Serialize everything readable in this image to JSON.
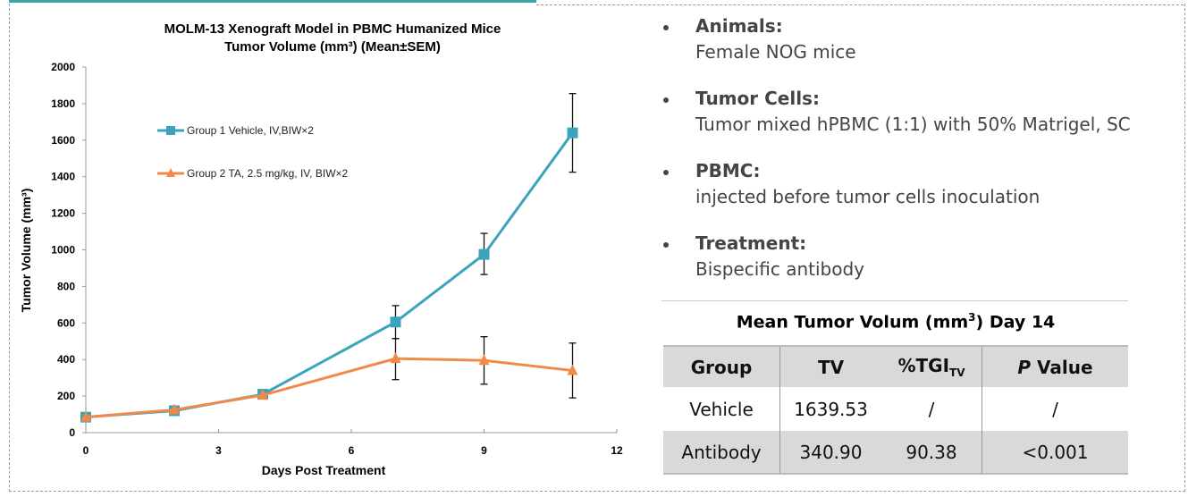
{
  "chart_data": {
    "type": "line",
    "title": [
      "MOLM-13 Xenograft Model in PBMC Humanized Mice",
      "Tumor Volume (mm³)  (Mean±SEM)"
    ],
    "xlabel": "Days Post Treatment",
    "ylabel": "Tumor Volume (mm³)",
    "xlim": [
      0,
      12
    ],
    "ylim": [
      0,
      2000
    ],
    "xticks": [
      0,
      3,
      6,
      9,
      12
    ],
    "yticks": [
      0,
      200,
      400,
      600,
      800,
      1000,
      1200,
      1400,
      1600,
      1800,
      2000
    ],
    "grid": false,
    "legend_placement": "top-left",
    "series": [
      {
        "name": "Group 1 Vehicle, IV,BIW×2",
        "color": "#3ba3bb",
        "marker": "square",
        "x": [
          0,
          2,
          4,
          7,
          9,
          11
        ],
        "y": [
          85,
          120,
          210,
          605,
          975,
          1640
        ],
        "err_low": [
          null,
          null,
          null,
          515,
          865,
          1425
        ],
        "err_high": [
          null,
          null,
          null,
          695,
          1090,
          1855
        ]
      },
      {
        "name": "Group 2 TA, 2.5 mg/kg, IV, BIW×2",
        "color": "#f08a4b",
        "marker": "triangle",
        "x": [
          0,
          2,
          4,
          7,
          9,
          11
        ],
        "y": [
          85,
          125,
          205,
          405,
          395,
          340
        ],
        "err_low": [
          null,
          null,
          null,
          290,
          265,
          190
        ],
        "err_high": [
          null,
          null,
          null,
          515,
          525,
          490
        ]
      }
    ]
  },
  "bullets": [
    {
      "heading": "Animals:",
      "text": "Female NOG mice"
    },
    {
      "heading": "Tumor Cells:",
      "text": "Tumor mixed hPBMC (1:1) with 50% Matrigel, SC"
    },
    {
      "heading": "PBMC:",
      "text": "injected before tumor cells inoculation"
    },
    {
      "heading": "Treatment:",
      "text": "Bispecific antibody"
    }
  ],
  "table": {
    "title_pre": "Mean Tumor Volum (mm",
    "title_sup": "3",
    "title_post": ") Day 14",
    "headers": {
      "group": "Group",
      "tv": "TV",
      "tgi": "%TGI",
      "tgi_sub": "TV",
      "p_italic": "P",
      "p_rest": " Value"
    },
    "rows": [
      {
        "group": "Vehicle",
        "tv": "1639.53",
        "tgi": "/",
        "p": "/"
      },
      {
        "group": "Antibody",
        "tv": "340.90",
        "tgi": "90.38",
        "p": "<0.001"
      }
    ]
  }
}
